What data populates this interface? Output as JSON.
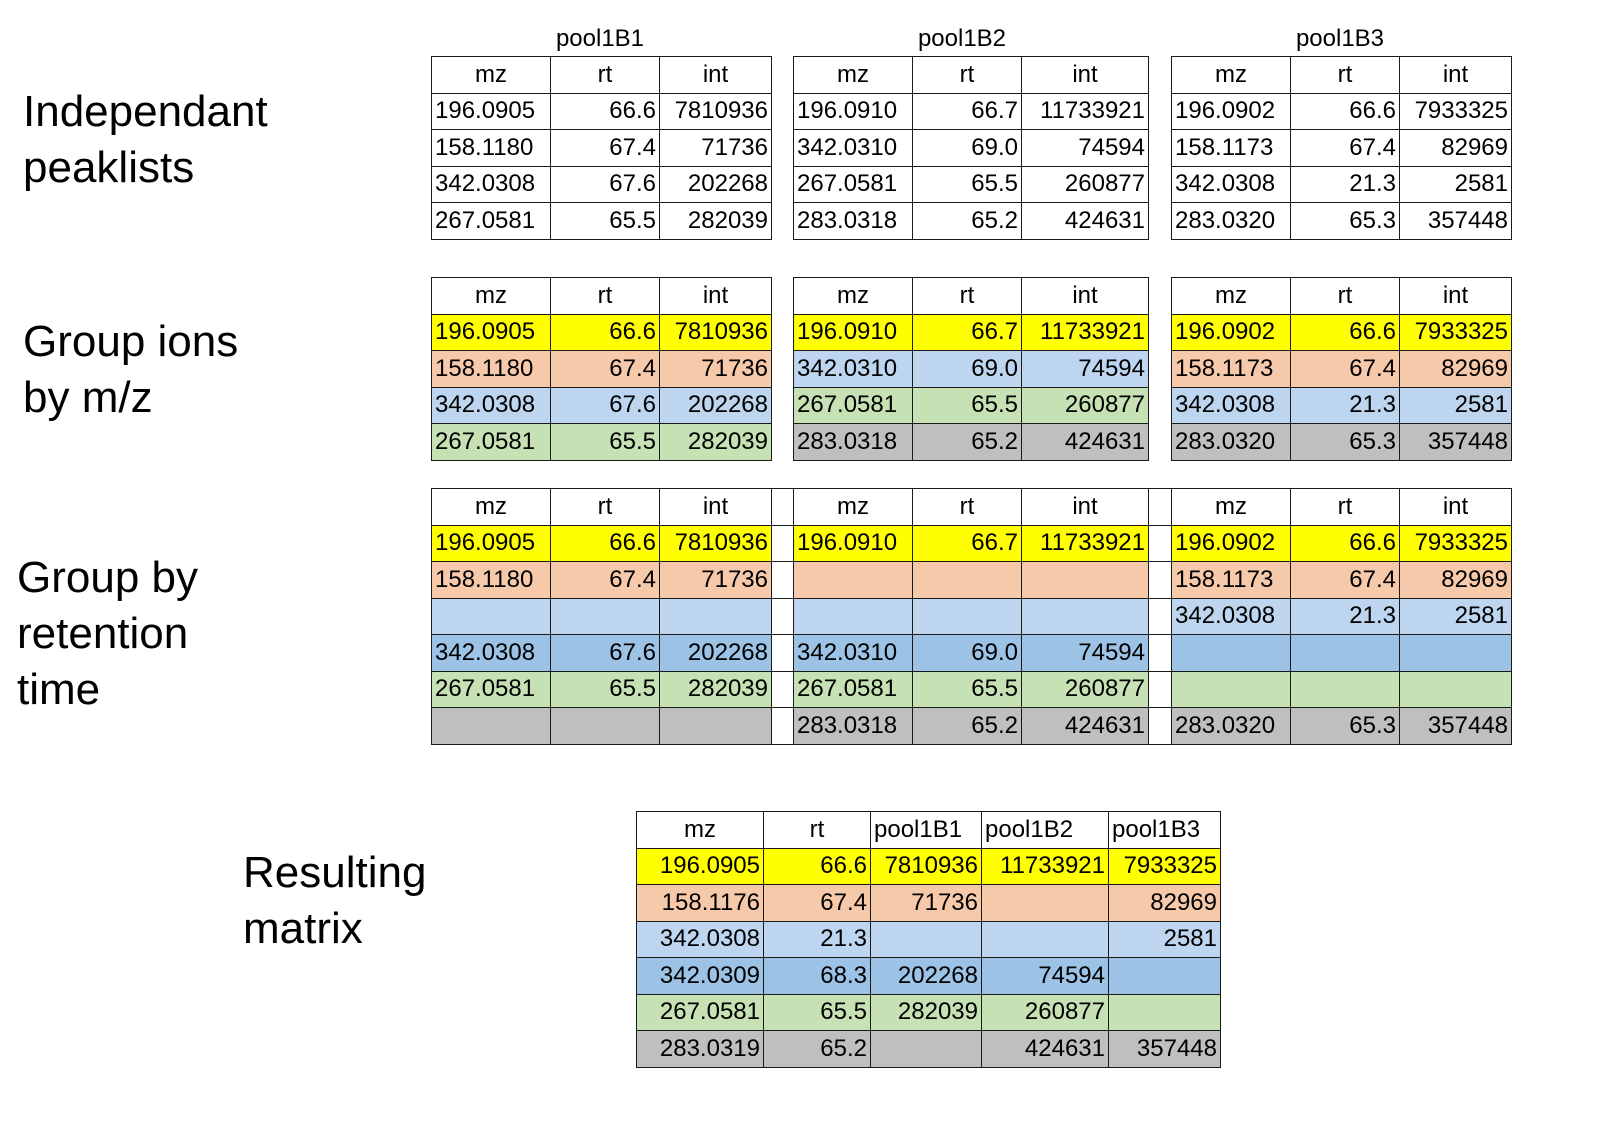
{
  "sections": {
    "independent": "Independant\npeaklists",
    "group_mz": "Group ions\nby m/z",
    "group_rt": "Group by\nretention\ntime",
    "matrix": "Resulting\nmatrix"
  },
  "colors": {
    "yellow": "#ffff00",
    "salmon": "#f7c9ab",
    "lightblue": "#bdd5ee",
    "blue": "#9cc2e5",
    "green": "#c6e1b4",
    "gray": "#bfbfbf",
    "white": "#ffffff"
  },
  "peaklists": [
    {
      "title": "pool1B1",
      "header": [
        "mz",
        "rt",
        "int"
      ],
      "rows": [
        [
          "196.0905",
          "66.6",
          "7810936"
        ],
        [
          "158.1180",
          "67.4",
          "71736"
        ],
        [
          "342.0308",
          "67.6",
          "202268"
        ],
        [
          "267.0581",
          "65.5",
          "282039"
        ]
      ],
      "mz_groups": [
        "yellow",
        "salmon",
        "lightblue",
        "green"
      ]
    },
    {
      "title": "pool1B2",
      "header": [
        "mz",
        "rt",
        "int"
      ],
      "rows": [
        [
          "196.0910",
          "66.7",
          "11733921"
        ],
        [
          "342.0310",
          "69.0",
          "74594"
        ],
        [
          "267.0581",
          "65.5",
          "260877"
        ],
        [
          "283.0318",
          "65.2",
          "424631"
        ]
      ],
      "mz_groups": [
        "yellow",
        "lightblue",
        "green",
        "gray"
      ]
    },
    {
      "title": "pool1B3",
      "header": [
        "mz",
        "rt",
        "int"
      ],
      "rows": [
        [
          "196.0902",
          "66.6",
          "7933325"
        ],
        [
          "158.1173",
          "67.4",
          "82969"
        ],
        [
          "342.0308",
          "21.3",
          "2581"
        ],
        [
          "283.0320",
          "65.3",
          "357448"
        ]
      ],
      "mz_groups": [
        "yellow",
        "salmon",
        "lightblue",
        "gray"
      ]
    }
  ],
  "rt_grouping": {
    "header": [
      "mz",
      "rt",
      "int",
      "",
      "mz",
      "rt",
      "int",
      "",
      "mz",
      "rt",
      "int"
    ],
    "rows": [
      {
        "color": "yellow",
        "cells": [
          "196.0905",
          "66.6",
          "7810936",
          "",
          "196.0910",
          "66.7",
          "11733921",
          "",
          "196.0902",
          "66.6",
          "7933325"
        ]
      },
      {
        "color": "salmon",
        "cells": [
          "158.1180",
          "67.4",
          "71736",
          "",
          "",
          "",
          "",
          "",
          "158.1173",
          "67.4",
          "82969"
        ]
      },
      {
        "color": "lightblue",
        "cells": [
          "",
          "",
          "",
          "",
          "",
          "",
          "",
          "",
          "342.0308",
          "21.3",
          "2581"
        ]
      },
      {
        "color": "blue",
        "cells": [
          "342.0308",
          "67.6",
          "202268",
          "",
          "342.0310",
          "69.0",
          "74594",
          "",
          "",
          "",
          ""
        ]
      },
      {
        "color": "green",
        "cells": [
          "267.0581",
          "65.5",
          "282039",
          "",
          "267.0581",
          "65.5",
          "260877",
          "",
          "",
          "",
          ""
        ]
      },
      {
        "color": "gray",
        "cells": [
          "",
          "",
          "",
          "",
          "283.0318",
          "65.2",
          "424631",
          "",
          "283.0320",
          "65.3",
          "357448"
        ]
      }
    ]
  },
  "matrix": {
    "header": [
      "mz",
      "rt",
      "pool1B1",
      "pool1B2",
      "pool1B3"
    ],
    "rows": [
      {
        "color": "yellow",
        "cells": [
          "196.0905",
          "66.6",
          "7810936",
          "11733921",
          "7933325"
        ]
      },
      {
        "color": "salmon",
        "cells": [
          "158.1176",
          "67.4",
          "71736",
          "",
          "82969"
        ]
      },
      {
        "color": "lightblue",
        "cells": [
          "342.0308",
          "21.3",
          "",
          "",
          "2581"
        ]
      },
      {
        "color": "blue",
        "cells": [
          "342.0309",
          "68.3",
          "202268",
          "74594",
          ""
        ]
      },
      {
        "color": "green",
        "cells": [
          "267.0581",
          "65.5",
          "282039",
          "260877",
          ""
        ]
      },
      {
        "color": "gray",
        "cells": [
          "283.0319",
          "65.2",
          "",
          "424631",
          "357448"
        ]
      }
    ]
  }
}
